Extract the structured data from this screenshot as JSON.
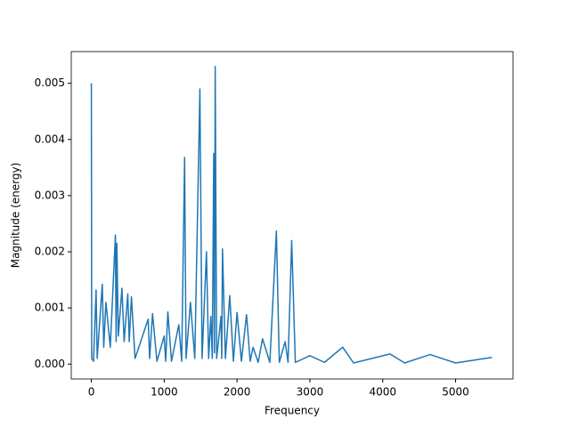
{
  "chart_data": {
    "type": "line",
    "x_label": "Frequency",
    "y_label": "Magnitude (energy)",
    "x": [
      0,
      5,
      30,
      65,
      80,
      150,
      170,
      200,
      260,
      330,
      340,
      350,
      370,
      420,
      450,
      500,
      520,
      550,
      600,
      780,
      800,
      840,
      900,
      1000,
      1020,
      1050,
      1100,
      1200,
      1240,
      1280,
      1300,
      1360,
      1420,
      1490,
      1520,
      1580,
      1610,
      1640,
      1660,
      1680,
      1690,
      1700,
      1720,
      1780,
      1790,
      1800,
      1840,
      1900,
      1950,
      2000,
      2060,
      2130,
      2180,
      2220,
      2290,
      2350,
      2450,
      2540,
      2580,
      2660,
      2700,
      2750,
      2800,
      3000,
      3200,
      3450,
      3600,
      4100,
      4300,
      4650,
      5000,
      5500
    ],
    "series": [
      {
        "name": "Magnitude",
        "color": "#1f77b4",
        "values": [
          0.005,
          0.0001,
          5e-05,
          0.00132,
          0.0001,
          0.00142,
          0.0003,
          0.0011,
          0.0003,
          0.0023,
          0.0004,
          0.00215,
          0.0005,
          0.00135,
          0.0004,
          0.00125,
          0.0004,
          0.0012,
          0.0001,
          0.0008,
          0.0001,
          0.0009,
          5e-05,
          0.0005,
          5e-05,
          0.00093,
          5e-05,
          0.0007,
          5e-05,
          0.00368,
          0.0001,
          0.0011,
          0.0001,
          0.0049,
          0.0001,
          0.002,
          0.0001,
          0.00085,
          0.0001,
          0.00375,
          0.0002,
          0.0053,
          0.0001,
          0.00085,
          0.0001,
          0.00205,
          0.0001,
          0.00122,
          5e-05,
          0.00092,
          5e-05,
          0.00088,
          5e-05,
          0.0003,
          3e-05,
          0.00045,
          3e-05,
          0.00237,
          3e-05,
          0.0004,
          3e-05,
          0.0022,
          3e-05,
          0.00015,
          3e-05,
          0.0003,
          2e-05,
          0.00018,
          2e-05,
          0.00017,
          2e-05,
          0.00012
        ]
      }
    ],
    "xlim": [
      -276,
      5788
    ],
    "ylim": [
      -0.000265,
      0.005565
    ],
    "xticks": [
      0,
      1000,
      2000,
      3000,
      4000,
      5000
    ],
    "yticks": [
      {
        "value": 0,
        "label": "0.000"
      },
      {
        "value": 0.001,
        "label": "0.001"
      },
      {
        "value": 0.002,
        "label": "0.002"
      },
      {
        "value": 0.003,
        "label": "0.003"
      },
      {
        "value": 0.004,
        "label": "0.004"
      },
      {
        "value": 0.005,
        "label": "0.005"
      }
    ],
    "grid": false
  }
}
